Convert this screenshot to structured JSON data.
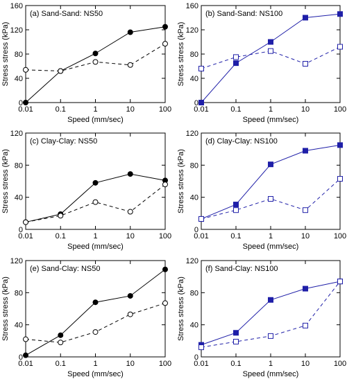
{
  "chart_data": [
    {
      "type": "line",
      "title": "(a) Sand-Sand: NS50",
      "xlabel": "Speed (mm/sec)",
      "ylabel": "Stress stress (kPa)",
      "xscale": "log",
      "x": [
        0.01,
        0.1,
        1,
        10,
        100
      ],
      "xlim": [
        0.01,
        100
      ],
      "xticks": [
        0.01,
        0.1,
        1,
        10,
        100
      ],
      "ylim": [
        0,
        160
      ],
      "yticks": [
        0,
        40,
        80,
        120,
        160
      ],
      "series": [
        {
          "color": "#000000",
          "dashed": false,
          "marker": "circle",
          "filled": true,
          "values": [
            0,
            52,
            81,
            116,
            125
          ]
        },
        {
          "color": "#000000",
          "dashed": true,
          "marker": "circle",
          "filled": false,
          "values": [
            54,
            52,
            67,
            62,
            97
          ]
        }
      ]
    },
    {
      "type": "line",
      "title": "(b) Sand-Sand: NS100",
      "xlabel": "Speed (mm/sec)",
      "ylabel": "Stress stress (kPa)",
      "xscale": "log",
      "x": [
        0.01,
        0.1,
        1,
        10,
        100
      ],
      "xlim": [
        0.01,
        100
      ],
      "xticks": [
        0.01,
        0.1,
        1,
        10,
        100
      ],
      "ylim": [
        0,
        160
      ],
      "yticks": [
        0,
        40,
        80,
        120,
        160
      ],
      "series": [
        {
          "color": "#1f1fa8",
          "dashed": false,
          "marker": "square",
          "filled": true,
          "values": [
            0,
            65,
            100,
            140,
            146
          ]
        },
        {
          "color": "#1f1fa8",
          "dashed": true,
          "marker": "square",
          "filled": false,
          "values": [
            56,
            75,
            85,
            64,
            92
          ]
        }
      ]
    },
    {
      "type": "line",
      "title": "(c) Clay-Clay: NS50",
      "xlabel": "Speed (mm/sec)",
      "ylabel": "Stress stress (kPa)",
      "xscale": "log",
      "x": [
        0.01,
        0.1,
        1,
        10,
        100
      ],
      "xlim": [
        0.01,
        100
      ],
      "xticks": [
        0.01,
        0.1,
        1,
        10,
        100
      ],
      "ylim": [
        0,
        120
      ],
      "yticks": [
        0,
        40,
        80,
        120
      ],
      "series": [
        {
          "color": "#000000",
          "dashed": false,
          "marker": "circle",
          "filled": true,
          "values": [
            9,
            19,
            58,
            69,
            61
          ]
        },
        {
          "color": "#000000",
          "dashed": true,
          "marker": "circle",
          "filled": false,
          "values": [
            9,
            17,
            34,
            22,
            56
          ]
        }
      ]
    },
    {
      "type": "line",
      "title": "(d) Clay-Clay: NS100",
      "xlabel": "Speed (mm/sec)",
      "ylabel": "Stress stress (kPa)",
      "xscale": "log",
      "x": [
        0.01,
        0.1,
        1,
        10,
        100
      ],
      "xlim": [
        0.01,
        100
      ],
      "xticks": [
        0.01,
        0.1,
        1,
        10,
        100
      ],
      "ylim": [
        0,
        120
      ],
      "yticks": [
        0,
        40,
        80,
        120
      ],
      "series": [
        {
          "color": "#1f1fa8",
          "dashed": false,
          "marker": "square",
          "filled": true,
          "values": [
            13,
            31,
            81,
            98,
            105
          ]
        },
        {
          "color": "#1f1fa8",
          "dashed": true,
          "marker": "square",
          "filled": false,
          "values": [
            13,
            24,
            38,
            24,
            63
          ]
        }
      ]
    },
    {
      "type": "line",
      "title": "(e) Sand-Clay: NS50",
      "xlabel": "Speed (mm/sec)",
      "ylabel": "Stress stress (kPa)",
      "xscale": "log",
      "x": [
        0.01,
        0.1,
        1,
        10,
        100
      ],
      "xlim": [
        0.01,
        100
      ],
      "xticks": [
        0.01,
        0.1,
        1,
        10,
        100
      ],
      "ylim": [
        0,
        120
      ],
      "yticks": [
        0,
        40,
        80,
        120
      ],
      "series": [
        {
          "color": "#000000",
          "dashed": false,
          "marker": "circle",
          "filled": true,
          "values": [
            2,
            27,
            68,
            76,
            109
          ]
        },
        {
          "color": "#000000",
          "dashed": true,
          "marker": "circle",
          "filled": false,
          "values": [
            22,
            18,
            31,
            53,
            67
          ]
        }
      ]
    },
    {
      "type": "line",
      "title": "(f) Sand-Clay: NS100",
      "xlabel": "Speed (mm/sec)",
      "ylabel": "Stress stress (kPa)",
      "xscale": "log",
      "x": [
        0.01,
        0.1,
        1,
        10,
        100
      ],
      "xlim": [
        0.01,
        100
      ],
      "xticks": [
        0.01,
        0.1,
        1,
        10,
        100
      ],
      "ylim": [
        0,
        120
      ],
      "yticks": [
        0,
        40,
        80,
        120
      ],
      "series": [
        {
          "color": "#1f1fa8",
          "dashed": false,
          "marker": "square",
          "filled": true,
          "values": [
            15,
            30,
            71,
            85,
            94
          ]
        },
        {
          "color": "#1f1fa8",
          "dashed": true,
          "marker": "square",
          "filled": false,
          "values": [
            12,
            19,
            26,
            39,
            94
          ]
        }
      ]
    }
  ]
}
